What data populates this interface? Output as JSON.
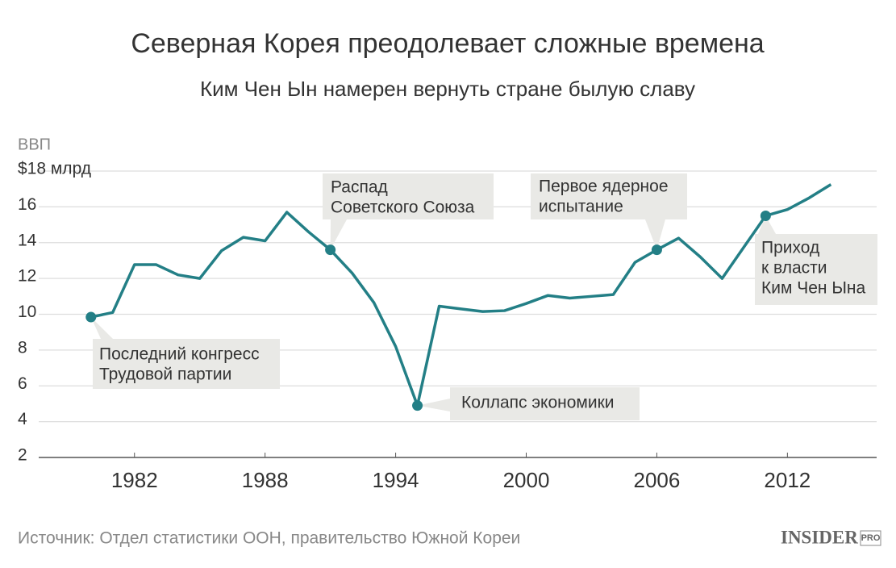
{
  "chart_data": {
    "type": "line",
    "title": "Северная Корея преодолевает сложные времена",
    "subtitle": "Ким Чен Ын намерен вернуть стране былую славу",
    "y_axis_label": "ВВП",
    "x": [
      1980,
      1981,
      1982,
      1983,
      1984,
      1985,
      1986,
      1987,
      1988,
      1989,
      1990,
      1991,
      1992,
      1993,
      1994,
      1995,
      1996,
      1997,
      1998,
      1999,
      2000,
      2001,
      2002,
      2003,
      2004,
      2005,
      2006,
      2007,
      2008,
      2009,
      2010,
      2011,
      2012,
      2013,
      2014
    ],
    "series": [
      {
        "color": "#237f86",
        "values": [
          9.84,
          10.1,
          12.77,
          12.77,
          12.2,
          12.0,
          13.55,
          14.3,
          14.1,
          15.7,
          14.6,
          13.6,
          12.3,
          10.65,
          8.2,
          4.9,
          10.45,
          10.3,
          10.15,
          10.2,
          10.6,
          11.05,
          10.9,
          11.0,
          11.1,
          12.9,
          13.6,
          14.25,
          13.2,
          12.0,
          13.75,
          15.5,
          15.85,
          16.5,
          17.25
        ]
      }
    ],
    "xlim": [
      1977.6,
      2016.1
    ],
    "xticks": [
      1982,
      1988,
      1994,
      2000,
      2006,
      2012
    ],
    "ylim": [
      2,
      18
    ],
    "yticks": [
      2,
      4,
      6,
      8,
      10,
      12,
      14,
      16,
      {
        "value": 18,
        "label": "$18 млрд"
      }
    ],
    "grid": true,
    "annotations": [
      {
        "x": 1980,
        "lines": [
          "Последний конгресс",
          "Трудовой партии"
        ]
      },
      {
        "x": 1991,
        "lines": [
          "Распад",
          "Советского Союза"
        ]
      },
      {
        "x": 1995,
        "lines": [
          "Коллапс экономики"
        ]
      },
      {
        "x": 2006,
        "lines": [
          "Первое ядерное",
          "испытание"
        ]
      },
      {
        "x": 2011,
        "lines": [
          "Приход",
          "к власти",
          "Ким Чен Ына"
        ]
      }
    ],
    "source": "Источник: Отдел статистики ООН, правительство Южной Кореи",
    "logo": {
      "main": "INSIDER",
      "sub": "PRO"
    }
  }
}
